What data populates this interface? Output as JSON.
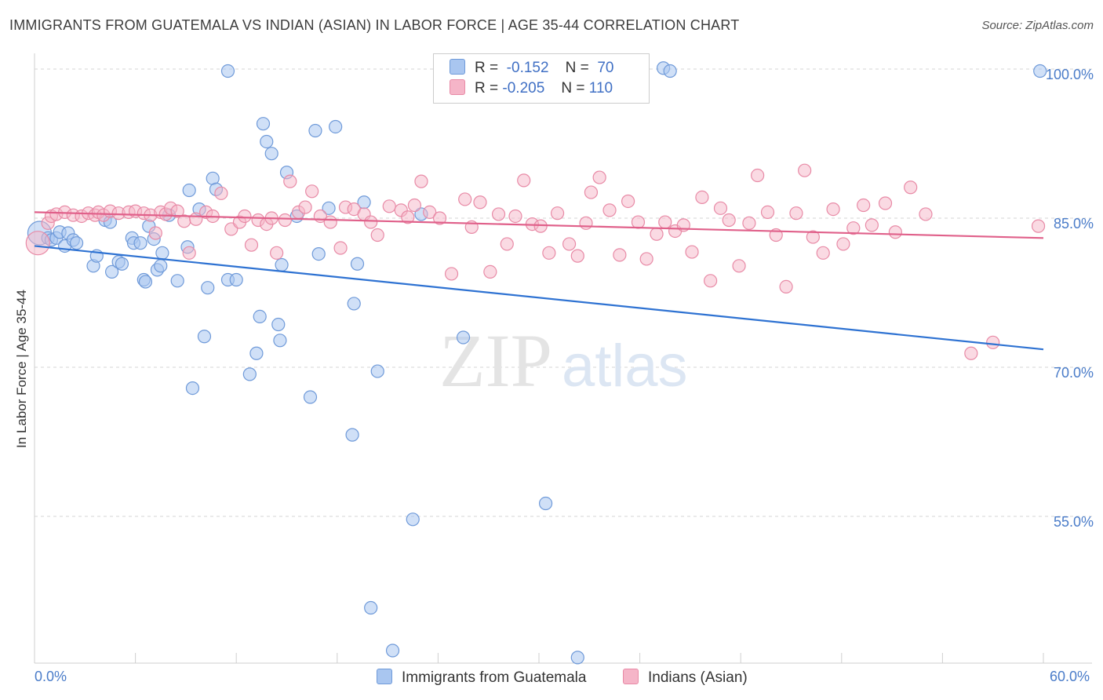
{
  "title": "IMMIGRANTS FROM GUATEMALA VS INDIAN (ASIAN) IN LABOR FORCE | AGE 35-44 CORRELATION CHART",
  "source": "Source: ZipAtlas.com",
  "watermark": {
    "zip": "ZIP",
    "atlas": "atlas"
  },
  "legend": {
    "r_label": "R =",
    "n_label": "N =",
    "series": [
      {
        "name": "Immigrants from Guatemala",
        "r": "-0.152",
        "n": "70",
        "color": "#a9c6f0",
        "line": "#2e72d2"
      },
      {
        "name": "Indians (Asian)",
        "r": "-0.205",
        "n": "110",
        "color": "#f5b5c8",
        "line": "#e0608a"
      }
    ]
  },
  "chart_data": {
    "type": "scatter",
    "title": "IMMIGRANTS FROM GUATEMALA VS INDIAN (ASIAN) IN LABOR FORCE | AGE 35-44 CORRELATION CHART",
    "xlabel": "",
    "ylabel": "In Labor Force | Age 35-44",
    "xlim": [
      0,
      60
    ],
    "ylim": [
      40,
      102
    ],
    "x_tick_labels": [
      "0.0%",
      "60.0%"
    ],
    "y_ticks": [
      55,
      70,
      85,
      100
    ],
    "y_tick_labels": [
      "55.0%",
      "70.0%",
      "85.0%",
      "100.0%"
    ],
    "grid": true,
    "legend_position": "top-center",
    "series": [
      {
        "name": "Immigrants from Guatemala",
        "color": "#a9c6f0",
        "trend": {
          "x": [
            0,
            60
          ],
          "y": [
            82.2,
            71.8
          ]
        },
        "points": [
          [
            0.3,
            83.5
          ],
          [
            0.8,
            83.0
          ],
          [
            1.0,
            82.8
          ],
          [
            1.3,
            83.0
          ],
          [
            1.5,
            83.6
          ],
          [
            1.8,
            82.2
          ],
          [
            2.0,
            83.5
          ],
          [
            2.3,
            82.8
          ],
          [
            2.5,
            82.5
          ],
          [
            3.5,
            80.2
          ],
          [
            3.7,
            81.2
          ],
          [
            4.2,
            84.8
          ],
          [
            4.5,
            84.6
          ],
          [
            4.6,
            79.6
          ],
          [
            5.0,
            80.6
          ],
          [
            5.2,
            80.4
          ],
          [
            5.8,
            83.0
          ],
          [
            5.9,
            82.5
          ],
          [
            6.3,
            82.5
          ],
          [
            6.5,
            78.8
          ],
          [
            6.6,
            78.6
          ],
          [
            6.8,
            84.2
          ],
          [
            7.1,
            82.9
          ],
          [
            7.3,
            79.8
          ],
          [
            7.5,
            80.2
          ],
          [
            7.6,
            81.5
          ],
          [
            8.0,
            85.3
          ],
          [
            8.5,
            78.7
          ],
          [
            9.1,
            82.1
          ],
          [
            9.2,
            87.8
          ],
          [
            9.4,
            67.9
          ],
          [
            9.8,
            85.9
          ],
          [
            10.1,
            73.1
          ],
          [
            10.3,
            78.0
          ],
          [
            10.6,
            89.0
          ],
          [
            10.8,
            87.9
          ],
          [
            11.5,
            78.8
          ],
          [
            11.5,
            99.8
          ],
          [
            12.0,
            78.8
          ],
          [
            12.8,
            69.3
          ],
          [
            13.2,
            71.4
          ],
          [
            13.4,
            75.1
          ],
          [
            13.6,
            94.5
          ],
          [
            13.8,
            92.7
          ],
          [
            14.1,
            91.5
          ],
          [
            14.5,
            74.3
          ],
          [
            14.6,
            72.7
          ],
          [
            14.7,
            80.3
          ],
          [
            15.0,
            89.6
          ],
          [
            15.6,
            85.2
          ],
          [
            16.4,
            67.0
          ],
          [
            16.7,
            93.8
          ],
          [
            16.9,
            81.4
          ],
          [
            17.5,
            86.0
          ],
          [
            17.9,
            94.2
          ],
          [
            18.9,
            63.2
          ],
          [
            19.0,
            76.4
          ],
          [
            19.2,
            80.4
          ],
          [
            19.6,
            86.6
          ],
          [
            20.0,
            45.8
          ],
          [
            20.4,
            69.6
          ],
          [
            21.3,
            41.5
          ],
          [
            22.5,
            54.7
          ],
          [
            23.0,
            85.4
          ],
          [
            25.5,
            73.0
          ],
          [
            30.4,
            56.3
          ],
          [
            32.3,
            40.8
          ],
          [
            37.4,
            100.1
          ],
          [
            37.8,
            99.8
          ],
          [
            59.8,
            99.8
          ]
        ]
      },
      {
        "name": "Indians (Asian)",
        "color": "#f5b5c8",
        "trend": {
          "x": [
            0,
            60
          ],
          "y": [
            85.6,
            83.0
          ]
        },
        "points": [
          [
            0.2,
            82.5
          ],
          [
            0.8,
            84.5
          ],
          [
            1.0,
            85.2
          ],
          [
            1.3,
            85.4
          ],
          [
            1.8,
            85.6
          ],
          [
            2.3,
            85.3
          ],
          [
            2.8,
            85.2
          ],
          [
            3.2,
            85.5
          ],
          [
            3.6,
            85.3
          ],
          [
            3.8,
            85.6
          ],
          [
            4.1,
            85.3
          ],
          [
            4.5,
            85.7
          ],
          [
            5.0,
            85.5
          ],
          [
            5.6,
            85.6
          ],
          [
            6.0,
            85.7
          ],
          [
            6.5,
            85.5
          ],
          [
            6.9,
            85.3
          ],
          [
            7.2,
            83.5
          ],
          [
            7.5,
            85.6
          ],
          [
            7.8,
            85.4
          ],
          [
            8.1,
            86.0
          ],
          [
            8.5,
            85.7
          ],
          [
            8.9,
            84.7
          ],
          [
            9.2,
            81.5
          ],
          [
            9.6,
            84.9
          ],
          [
            10.2,
            85.6
          ],
          [
            10.6,
            85.2
          ],
          [
            11.1,
            87.5
          ],
          [
            11.7,
            83.9
          ],
          [
            12.2,
            84.6
          ],
          [
            12.5,
            85.2
          ],
          [
            12.9,
            82.3
          ],
          [
            13.3,
            84.8
          ],
          [
            13.8,
            84.4
          ],
          [
            14.1,
            85.0
          ],
          [
            14.4,
            81.5
          ],
          [
            14.9,
            84.8
          ],
          [
            15.2,
            88.7
          ],
          [
            15.7,
            85.6
          ],
          [
            16.1,
            86.1
          ],
          [
            16.5,
            87.7
          ],
          [
            17.0,
            85.2
          ],
          [
            17.6,
            84.6
          ],
          [
            18.2,
            82.0
          ],
          [
            18.5,
            86.1
          ],
          [
            19.0,
            85.9
          ],
          [
            19.6,
            85.4
          ],
          [
            20.0,
            84.6
          ],
          [
            20.4,
            83.3
          ],
          [
            21.1,
            86.2
          ],
          [
            21.8,
            85.8
          ],
          [
            22.2,
            85.1
          ],
          [
            22.6,
            86.3
          ],
          [
            23.0,
            88.7
          ],
          [
            23.5,
            85.6
          ],
          [
            24.1,
            85.0
          ],
          [
            24.8,
            79.4
          ],
          [
            25.6,
            86.9
          ],
          [
            26.0,
            84.1
          ],
          [
            26.5,
            86.6
          ],
          [
            27.1,
            79.6
          ],
          [
            27.6,
            85.4
          ],
          [
            28.1,
            82.4
          ],
          [
            28.6,
            85.2
          ],
          [
            29.1,
            88.8
          ],
          [
            29.6,
            84.4
          ],
          [
            30.1,
            84.2
          ],
          [
            30.6,
            81.5
          ],
          [
            31.1,
            85.5
          ],
          [
            31.8,
            82.4
          ],
          [
            32.3,
            81.2
          ],
          [
            32.8,
            84.5
          ],
          [
            33.1,
            87.6
          ],
          [
            33.6,
            89.1
          ],
          [
            34.2,
            85.8
          ],
          [
            34.8,
            81.3
          ],
          [
            35.3,
            86.7
          ],
          [
            35.9,
            84.6
          ],
          [
            36.4,
            80.9
          ],
          [
            37.0,
            83.4
          ],
          [
            37.5,
            84.6
          ],
          [
            38.1,
            83.7
          ],
          [
            38.6,
            84.3
          ],
          [
            39.1,
            81.6
          ],
          [
            39.7,
            87.1
          ],
          [
            40.2,
            78.7
          ],
          [
            40.8,
            86.0
          ],
          [
            41.3,
            84.8
          ],
          [
            41.9,
            80.2
          ],
          [
            42.5,
            84.5
          ],
          [
            43.0,
            89.3
          ],
          [
            43.6,
            85.6
          ],
          [
            44.1,
            83.3
          ],
          [
            44.7,
            78.1
          ],
          [
            45.3,
            85.5
          ],
          [
            45.8,
            89.8
          ],
          [
            46.3,
            83.1
          ],
          [
            46.9,
            81.5
          ],
          [
            47.5,
            85.9
          ],
          [
            48.1,
            82.4
          ],
          [
            48.7,
            84.0
          ],
          [
            49.3,
            86.3
          ],
          [
            49.8,
            84.3
          ],
          [
            50.6,
            86.5
          ],
          [
            51.2,
            83.6
          ],
          [
            52.1,
            88.1
          ],
          [
            53.0,
            85.4
          ],
          [
            55.7,
            71.4
          ],
          [
            57.0,
            72.5
          ],
          [
            59.7,
            84.2
          ]
        ]
      }
    ]
  }
}
